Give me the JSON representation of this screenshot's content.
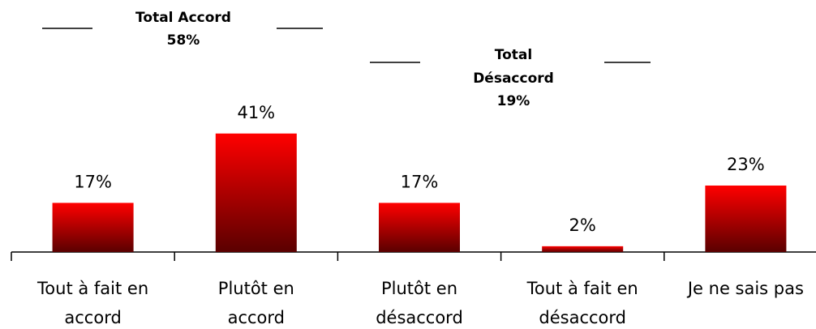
{
  "chart_data": {
    "type": "bar",
    "categories": [
      "Tout à fait en accord",
      "Plutôt en accord",
      "Plutôt en désaccord",
      "Tout à fait en désaccord",
      "Je ne sais pas"
    ],
    "values": [
      17,
      41,
      17,
      2,
      23
    ],
    "value_labels": [
      "17%",
      "41%",
      "17%",
      "2%",
      "23%"
    ],
    "color": "#ff0000",
    "ylim": [
      0,
      60
    ],
    "annotations": [
      {
        "text": "Total Accord",
        "value_label": "58%"
      },
      {
        "text": "Total Désaccord",
        "value_label": "19%"
      }
    ]
  }
}
